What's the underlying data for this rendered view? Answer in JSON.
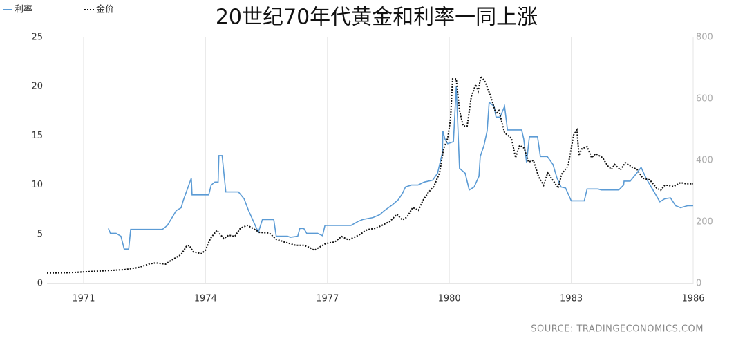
{
  "chart_data": {
    "type": "line",
    "title": "20世纪70年代黄金和利率一同上涨",
    "source": "SOURCE: TRADINGECONOMICS.COM",
    "xlim": [
      1970.1,
      1986.0
    ],
    "xticks": [
      1971,
      1974,
      1977,
      1980,
      1983,
      1986
    ],
    "ylim": [
      0,
      25
    ],
    "yticks": [
      0,
      5,
      10,
      15,
      20,
      25
    ],
    "y2lim": [
      0,
      800
    ],
    "y2ticks": [
      0,
      200,
      400,
      600,
      800
    ],
    "grid": "x",
    "legend": "top-left",
    "series": [
      {
        "name": "利率",
        "color": "#5b9bd5",
        "line_style": "solid",
        "axis": "y",
        "x": [
          1971.61,
          1971.66,
          1971.8,
          1971.92,
          1972.0,
          1972.11,
          1972.16,
          1972.94,
          1973.06,
          1973.28,
          1973.4,
          1973.45,
          1973.65,
          1973.67,
          1974.08,
          1974.14,
          1974.23,
          1974.31,
          1974.33,
          1974.41,
          1974.5,
          1974.81,
          1974.95,
          1975.06,
          1975.3,
          1975.4,
          1975.68,
          1975.74,
          1976.02,
          1976.09,
          1976.27,
          1976.32,
          1976.42,
          1976.49,
          1976.76,
          1976.88,
          1976.94,
          1977.58,
          1977.75,
          1977.87,
          1978.12,
          1978.29,
          1978.4,
          1978.6,
          1978.74,
          1978.84,
          1978.92,
          1979.07,
          1979.23,
          1979.38,
          1979.59,
          1979.71,
          1979.83,
          1979.84,
          1979.89,
          1979.96,
          1980.1,
          1980.17,
          1980.25,
          1980.39,
          1980.49,
          1980.61,
          1980.73,
          1980.76,
          1980.85,
          1980.93,
          1980.98,
          1981.1,
          1981.15,
          1981.25,
          1981.36,
          1981.43,
          1981.78,
          1981.83,
          1981.9,
          1981.97,
          1982.17,
          1982.24,
          1982.41,
          1982.55,
          1982.65,
          1982.75,
          1982.86,
          1983.0,
          1983.32,
          1983.39,
          1983.66,
          1983.74,
          1984.17,
          1984.29,
          1984.3,
          1984.45,
          1984.59,
          1984.72,
          1984.84,
          1985.01,
          1985.18,
          1985.3,
          1985.44,
          1985.57,
          1985.69,
          1985.86,
          1986.0
        ],
        "values": [
          5.6,
          5.1,
          5.1,
          4.8,
          3.5,
          3.5,
          5.5,
          5.5,
          5.9,
          7.4,
          7.7,
          8.4,
          10.7,
          9.0,
          9.0,
          10.0,
          10.3,
          10.3,
          13.0,
          13.0,
          9.3,
          9.3,
          8.6,
          7.4,
          5.2,
          6.5,
          6.5,
          4.8,
          4.8,
          4.7,
          4.8,
          5.6,
          5.6,
          5.1,
          5.1,
          4.85,
          5.9,
          5.9,
          6.3,
          6.5,
          6.7,
          7.0,
          7.4,
          8.0,
          8.5,
          9.1,
          9.8,
          10.0,
          10.0,
          10.3,
          10.5,
          11.2,
          13.3,
          15.5,
          14.7,
          14.2,
          14.4,
          20.0,
          11.7,
          11.2,
          9.5,
          9.8,
          10.9,
          12.9,
          14.0,
          15.5,
          18.4,
          18.0,
          16.9,
          16.9,
          18.0,
          15.6,
          15.6,
          14.7,
          12.3,
          14.9,
          14.9,
          12.9,
          12.9,
          12.1,
          10.7,
          9.8,
          9.7,
          8.4,
          8.4,
          9.6,
          9.6,
          9.5,
          9.5,
          10.0,
          10.4,
          10.4,
          11.1,
          11.8,
          10.7,
          9.5,
          8.3,
          8.6,
          8.7,
          7.9,
          7.7,
          7.9,
          7.9
        ]
      },
      {
        "name": "金价",
        "color": "#111111",
        "line_style": "dotted",
        "axis": "y2",
        "x": [
          1970.1,
          1970.64,
          1971.32,
          1972.0,
          1972.35,
          1972.6,
          1972.77,
          1973.02,
          1973.16,
          1973.4,
          1973.53,
          1973.6,
          1973.7,
          1973.9,
          1974.0,
          1974.12,
          1974.28,
          1974.45,
          1974.57,
          1974.72,
          1974.86,
          1975.03,
          1975.16,
          1975.33,
          1975.57,
          1975.74,
          1975.94,
          1976.22,
          1976.42,
          1976.56,
          1976.68,
          1976.79,
          1976.96,
          1977.18,
          1977.35,
          1977.52,
          1977.77,
          1977.98,
          1978.2,
          1978.37,
          1978.54,
          1978.71,
          1978.84,
          1978.96,
          1979.1,
          1979.24,
          1979.35,
          1979.49,
          1979.62,
          1979.76,
          1979.86,
          1979.96,
          1980.03,
          1980.08,
          1980.17,
          1980.25,
          1980.34,
          1980.44,
          1980.54,
          1980.65,
          1980.71,
          1980.78,
          1980.88,
          1981.02,
          1981.15,
          1981.22,
          1981.36,
          1981.53,
          1981.63,
          1981.73,
          1981.84,
          1981.95,
          1982.07,
          1982.2,
          1982.32,
          1982.42,
          1982.54,
          1982.68,
          1982.76,
          1982.92,
          1983.06,
          1983.14,
          1983.19,
          1983.26,
          1983.39,
          1983.5,
          1983.6,
          1983.77,
          1983.9,
          1983.99,
          1984.07,
          1984.21,
          1984.33,
          1984.5,
          1984.62,
          1984.76,
          1984.93,
          1985.1,
          1985.2,
          1985.3,
          1985.37,
          1985.52,
          1985.69,
          1985.83,
          1986.0
        ],
        "values": [
          34,
          35,
          40,
          45,
          52,
          63,
          67,
          63,
          76,
          94,
          121,
          124,
          103,
          97,
          108,
          146,
          173,
          146,
          157,
          153,
          180,
          189,
          180,
          166,
          164,
          144,
          135,
          124,
          124,
          117,
          108,
          117,
          130,
          135,
          153,
          142,
          157,
          175,
          180,
          191,
          202,
          225,
          207,
          216,
          247,
          238,
          270,
          297,
          315,
          360,
          438,
          472,
          535,
          665,
          665,
          562,
          512,
          512,
          607,
          647,
          625,
          674,
          656,
          607,
          551,
          562,
          490,
          472,
          409,
          449,
          440,
          395,
          400,
          346,
          319,
          360,
          337,
          310,
          355,
          382,
          483,
          499,
          416,
          438,
          445,
          409,
          422,
          409,
          382,
          371,
          387,
          369,
          393,
          378,
          371,
          342,
          337,
          310,
          303,
          319,
          319,
          315,
          328,
          324,
          324
        ]
      }
    ]
  }
}
